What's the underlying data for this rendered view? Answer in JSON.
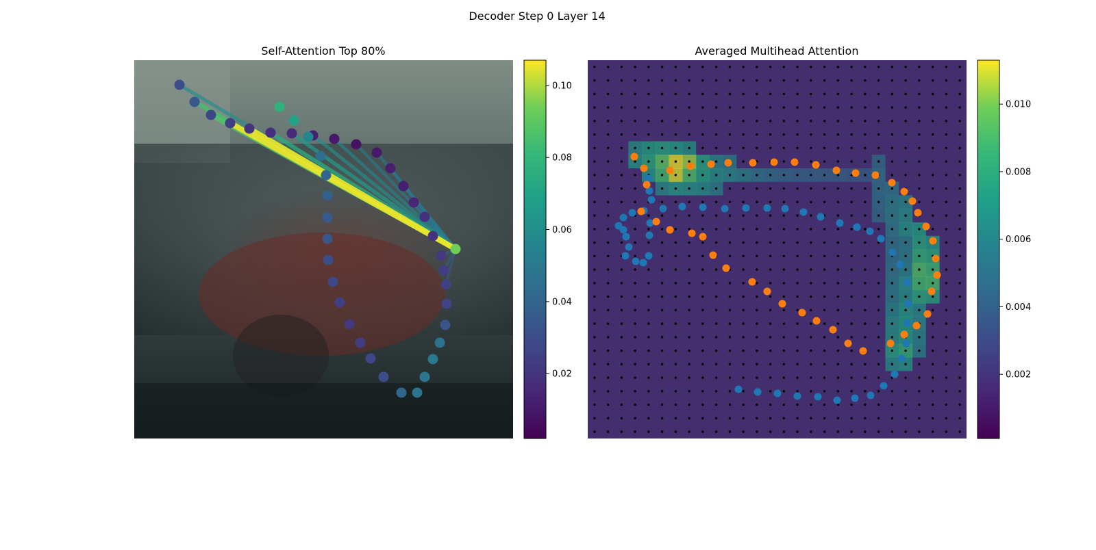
{
  "figure": {
    "suptitle": "Decoder Step 0 Layer 14"
  },
  "chart_data": [
    {
      "type": "scatter",
      "title": "Self-Attention Top 80%",
      "description_colors": {
        "query_point": "#6ece58",
        "background": "#3e4a4a"
      },
      "ring_points": [
        [
          66,
          36
        ],
        [
          88,
          61
        ],
        [
          112,
          80
        ],
        [
          140,
          92
        ],
        [
          168,
          100
        ],
        [
          199,
          106
        ],
        [
          230,
          107
        ],
        [
          261,
          110
        ],
        [
          292,
          115
        ],
        [
          324,
          123
        ],
        [
          354,
          135
        ],
        [
          374,
          158
        ],
        [
          393,
          184
        ],
        [
          408,
          208
        ],
        [
          424,
          229
        ],
        [
          436,
          257
        ],
        [
          448,
          286
        ],
        [
          452,
          307
        ],
        [
          455,
          328
        ],
        [
          456,
          356
        ],
        [
          454,
          387
        ],
        [
          446,
          413
        ],
        [
          436,
          437
        ],
        [
          424,
          463
        ],
        [
          413,
          486
        ],
        [
          390,
          486
        ],
        [
          364,
          463
        ],
        [
          345,
          436
        ],
        [
          330,
          413
        ],
        [
          314,
          386
        ],
        [
          300,
          354
        ],
        [
          290,
          324
        ],
        [
          283,
          292
        ],
        [
          282,
          261
        ],
        [
          282,
          230
        ],
        [
          282,
          198
        ],
        [
          280,
          168
        ],
        [
          272,
          140
        ],
        [
          254,
          112
        ],
        [
          233,
          88
        ],
        [
          212,
          68
        ]
      ],
      "ring_levels": [
        0.03,
        0.034,
        0.028,
        0.024,
        0.02,
        0.018,
        0.016,
        0.012,
        0.01,
        0.008,
        0.01,
        0.012,
        0.012,
        0.014,
        0.018,
        0.02,
        0.022,
        0.024,
        0.025,
        0.026,
        0.033,
        0.046,
        0.05,
        0.048,
        0.047,
        0.04,
        0.03,
        0.027,
        0.024,
        0.022,
        0.025,
        0.028,
        0.03,
        0.034,
        0.036,
        0.038,
        0.04,
        0.045,
        0.056,
        0.07,
        0.078
      ],
      "query_index": 19,
      "query_point": [
        469,
        276
      ],
      "attention_edges": [
        {
          "from_index": 0,
          "value": 0.06
        },
        {
          "from_index": 1,
          "value": 0.085
        },
        {
          "from_index": 2,
          "value": 0.088
        },
        {
          "from_index": 3,
          "value": 0.105
        },
        {
          "from_index": 4,
          "value": 0.105
        },
        {
          "from_index": 5,
          "value": 0.075
        },
        {
          "from_index": 6,
          "value": 0.066
        },
        {
          "from_index": 7,
          "value": 0.06
        },
        {
          "from_index": 8,
          "value": 0.055
        },
        {
          "from_index": 9,
          "value": 0.05
        },
        {
          "from_index": 10,
          "value": 0.05
        },
        {
          "from_index": 11,
          "value": 0.048
        },
        {
          "from_index": 12,
          "value": 0.046
        },
        {
          "from_index": 13,
          "value": 0.045
        },
        {
          "from_index": 14,
          "value": 0.044
        },
        {
          "from_index": 15,
          "value": 0.042
        },
        {
          "from_index": 16,
          "value": 0.04
        },
        {
          "from_index": 17,
          "value": 0.038
        },
        {
          "from_index": 18,
          "value": 0.036
        }
      ],
      "colorbar": {
        "min": 0.002,
        "max": 0.107,
        "ticks": [
          0.02,
          0.04,
          0.06,
          0.08,
          0.1
        ],
        "tick_labels": [
          "0.02",
          "0.04",
          "0.06",
          "0.08",
          "0.10"
        ]
      }
    },
    {
      "type": "heatmap",
      "title": "Averaged Multihead Attention",
      "grid": {
        "rows": 28,
        "cols": 28
      },
      "hotspots": [
        {
          "r": 7,
          "c": 5,
          "v": 0.0095
        },
        {
          "r": 7,
          "c": 6,
          "v": 0.0112
        },
        {
          "r": 7,
          "c": 7,
          "v": 0.0104
        },
        {
          "r": 8,
          "c": 5,
          "v": 0.0088
        },
        {
          "r": 8,
          "c": 6,
          "v": 0.011
        },
        {
          "r": 8,
          "c": 7,
          "v": 0.0092
        },
        {
          "r": 6,
          "c": 3,
          "v": 0.0062
        },
        {
          "r": 6,
          "c": 4,
          "v": 0.007
        },
        {
          "r": 6,
          "c": 5,
          "v": 0.0075
        },
        {
          "r": 6,
          "c": 6,
          "v": 0.007
        },
        {
          "r": 6,
          "c": 7,
          "v": 0.0064
        },
        {
          "r": 7,
          "c": 3,
          "v": 0.0066
        },
        {
          "r": 7,
          "c": 4,
          "v": 0.0078
        },
        {
          "r": 7,
          "c": 8,
          "v": 0.0075
        },
        {
          "r": 8,
          "c": 4,
          "v": 0.0068
        },
        {
          "r": 8,
          "c": 8,
          "v": 0.0074
        },
        {
          "r": 8,
          "c": 9,
          "v": 0.0064
        },
        {
          "r": 8,
          "c": 10,
          "v": 0.006
        },
        {
          "r": 8,
          "c": 11,
          "v": 0.0055
        },
        {
          "r": 7,
          "c": 9,
          "v": 0.0058
        },
        {
          "r": 7,
          "c": 10,
          "v": 0.0052
        },
        {
          "r": 9,
          "c": 5,
          "v": 0.006
        },
        {
          "r": 9,
          "c": 6,
          "v": 0.0068
        },
        {
          "r": 9,
          "c": 7,
          "v": 0.0066
        },
        {
          "r": 9,
          "c": 8,
          "v": 0.0063
        },
        {
          "r": 9,
          "c": 9,
          "v": 0.0055
        },
        {
          "r": 8,
          "c": 12,
          "v": 0.0048
        },
        {
          "r": 8,
          "c": 13,
          "v": 0.0045
        },
        {
          "r": 8,
          "c": 14,
          "v": 0.0042
        },
        {
          "r": 8,
          "c": 15,
          "v": 0.004
        },
        {
          "r": 8,
          "c": 16,
          "v": 0.004
        },
        {
          "r": 8,
          "c": 17,
          "v": 0.0038
        },
        {
          "r": 8,
          "c": 18,
          "v": 0.0038
        },
        {
          "r": 8,
          "c": 19,
          "v": 0.0036
        },
        {
          "r": 8,
          "c": 20,
          "v": 0.0036
        },
        {
          "r": 7,
          "c": 21,
          "v": 0.0042
        },
        {
          "r": 8,
          "c": 21,
          "v": 0.0046
        },
        {
          "r": 9,
          "c": 21,
          "v": 0.0046
        },
        {
          "r": 9,
          "c": 22,
          "v": 0.005
        },
        {
          "r": 10,
          "c": 22,
          "v": 0.0055
        },
        {
          "r": 11,
          "c": 22,
          "v": 0.0055
        },
        {
          "r": 10,
          "c": 23,
          "v": 0.0058
        },
        {
          "r": 11,
          "c": 23,
          "v": 0.0062
        },
        {
          "r": 12,
          "c": 23,
          "v": 0.0066
        },
        {
          "r": 12,
          "c": 24,
          "v": 0.007
        },
        {
          "r": 13,
          "c": 24,
          "v": 0.0075
        },
        {
          "r": 14,
          "c": 24,
          "v": 0.0082
        },
        {
          "r": 15,
          "c": 24,
          "v": 0.0092
        },
        {
          "r": 16,
          "c": 24,
          "v": 0.0088
        },
        {
          "r": 15,
          "c": 25,
          "v": 0.0086
        },
        {
          "r": 16,
          "c": 25,
          "v": 0.009
        },
        {
          "r": 17,
          "c": 24,
          "v": 0.0078
        },
        {
          "r": 14,
          "c": 25,
          "v": 0.0078
        },
        {
          "r": 13,
          "c": 25,
          "v": 0.0068
        },
        {
          "r": 17,
          "c": 25,
          "v": 0.0074
        },
        {
          "r": 18,
          "c": 23,
          "v": 0.0068
        },
        {
          "r": 19,
          "c": 23,
          "v": 0.007
        },
        {
          "r": 20,
          "c": 23,
          "v": 0.0072
        },
        {
          "r": 21,
          "c": 23,
          "v": 0.0082
        },
        {
          "r": 22,
          "c": 23,
          "v": 0.0066
        },
        {
          "r": 19,
          "c": 22,
          "v": 0.0062
        },
        {
          "r": 20,
          "c": 22,
          "v": 0.0064
        },
        {
          "r": 21,
          "c": 22,
          "v": 0.0074
        },
        {
          "r": 22,
          "c": 22,
          "v": 0.0062
        },
        {
          "r": 18,
          "c": 22,
          "v": 0.0058
        },
        {
          "r": 17,
          "c": 23,
          "v": 0.0064
        },
        {
          "r": 16,
          "c": 23,
          "v": 0.0066
        },
        {
          "r": 15,
          "c": 23,
          "v": 0.0058
        },
        {
          "r": 14,
          "c": 23,
          "v": 0.0055
        },
        {
          "r": 13,
          "c": 23,
          "v": 0.0054
        },
        {
          "r": 21,
          "c": 24,
          "v": 0.0055
        },
        {
          "r": 20,
          "c": 24,
          "v": 0.0058
        },
        {
          "r": 19,
          "c": 24,
          "v": 0.006
        },
        {
          "r": 18,
          "c": 24,
          "v": 0.0062
        },
        {
          "r": 10,
          "c": 21,
          "v": 0.0045
        },
        {
          "r": 11,
          "c": 21,
          "v": 0.0042
        },
        {
          "r": 12,
          "c": 22,
          "v": 0.0052
        },
        {
          "r": 13,
          "c": 22,
          "v": 0.0048
        },
        {
          "r": 14,
          "c": 22,
          "v": 0.0048
        },
        {
          "r": 15,
          "c": 22,
          "v": 0.005
        },
        {
          "r": 16,
          "c": 22,
          "v": 0.0052
        },
        {
          "r": 17,
          "c": 22,
          "v": 0.0054
        }
      ],
      "base_value": 0.0016,
      "blue_points": [
        [
          88,
          103
        ],
        [
          90,
          85
        ],
        [
          93,
          72
        ],
        [
          91,
          38
        ],
        [
          90,
          20
        ],
        [
          89,
          -10
        ],
        [
          81,
          -20
        ],
        [
          70,
          -18
        ],
        [
          55,
          -10
        ],
        [
          60,
          3
        ],
        [
          56,
          18
        ],
        [
          52,
          28
        ],
        [
          45,
          34
        ],
        [
          52,
          46
        ],
        [
          65,
          53
        ],
        [
          82,
          56
        ],
        [
          110,
          59
        ],
        [
          138,
          62
        ],
        [
          168,
          61
        ],
        [
          200,
          59
        ],
        [
          231,
          60
        ],
        [
          262,
          60
        ],
        [
          288,
          59
        ],
        [
          315,
          54
        ],
        [
          340,
          47
        ],
        [
          368,
          38
        ],
        [
          393,
          32
        ],
        [
          412,
          26
        ],
        [
          428,
          15
        ],
        [
          445,
          -5
        ],
        [
          456,
          -23
        ],
        [
          466,
          -49
        ],
        [
          468,
          -80
        ],
        [
          466,
          -108
        ],
        [
          465,
          -138
        ],
        [
          458,
          -160
        ],
        [
          448,
          -183
        ],
        [
          432,
          -200
        ],
        [
          413,
          -214
        ],
        [
          390,
          -218
        ],
        [
          364,
          -221
        ],
        [
          336,
          -216
        ],
        [
          306,
          -215
        ],
        [
          277,
          -211
        ],
        [
          248,
          -209
        ],
        [
          220,
          -205
        ]
      ],
      "orange_points": [
        [
          68,
          135
        ],
        [
          82,
          118
        ],
        [
          86,
          94
        ],
        [
          120,
          115
        ],
        [
          150,
          121
        ],
        [
          180,
          124
        ],
        [
          205,
          126
        ],
        [
          241,
          126
        ],
        [
          272,
          127
        ],
        [
          302,
          127
        ],
        [
          333,
          123
        ],
        [
          363,
          115
        ],
        [
          391,
          111
        ],
        [
          420,
          108
        ],
        [
          444,
          97
        ],
        [
          462,
          84
        ],
        [
          474,
          70
        ],
        [
          482,
          53
        ],
        [
          494,
          33
        ],
        [
          504,
          12
        ],
        [
          508,
          -14
        ],
        [
          510,
          -38
        ],
        [
          502,
          -62
        ],
        [
          496,
          -95
        ],
        [
          480,
          -112
        ],
        [
          462,
          -125
        ],
        [
          442,
          -138
        ],
        [
          402,
          -149
        ],
        [
          380,
          -138
        ],
        [
          358,
          -118
        ],
        [
          334,
          -105
        ],
        [
          313,
          -93
        ],
        [
          284,
          -80
        ],
        [
          262,
          -62
        ],
        [
          240,
          -48
        ],
        [
          202,
          -28
        ],
        [
          183,
          -9
        ],
        [
          168,
          18
        ],
        [
          152,
          23
        ],
        [
          120,
          28
        ],
        [
          100,
          40
        ],
        [
          78,
          55
        ]
      ],
      "colorbar": {
        "min": 0.0001,
        "max": 0.0113,
        "ticks": [
          0.002,
          0.004,
          0.006,
          0.008,
          0.01
        ],
        "tick_labels": [
          "0.002",
          "0.004",
          "0.006",
          "0.008",
          "0.010"
        ]
      }
    }
  ]
}
